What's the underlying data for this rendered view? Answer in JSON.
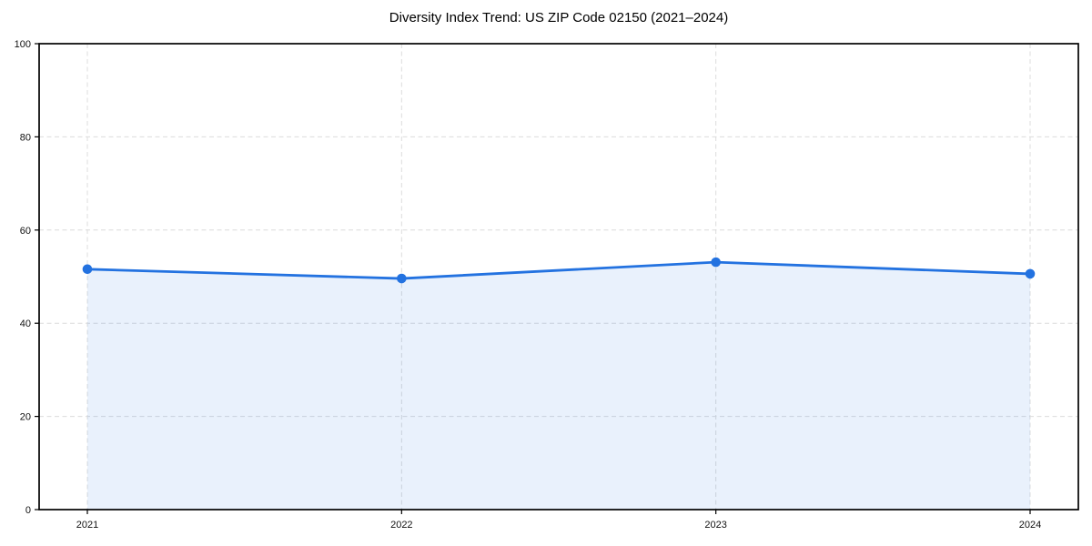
{
  "figure": {
    "background": "#ffffff"
  },
  "chart_data": {
    "type": "area",
    "title": "Diversity Index Trend: US ZIP Code 02150 (2021–2024)",
    "categories": [
      "2021",
      "2022",
      "2023",
      "2024"
    ],
    "series": [
      {
        "name": "Diversity Index",
        "values": [
          51.6,
          49.6,
          53.1,
          50.6
        ]
      }
    ],
    "xlabel": "",
    "ylabel": "",
    "ylim": [
      0,
      100
    ],
    "yticks": [
      0,
      20,
      40,
      60,
      80,
      100
    ],
    "grid": true,
    "grid_style": "dashed",
    "legend_position": "none",
    "marker": "circle",
    "colors": {
      "line": "#2372e0",
      "marker": "#2372e0",
      "fill": "rgba(35,114,224,0.10)",
      "grid": "#dcdcdc",
      "spine": "#000000",
      "tick_text": "#111111",
      "title_text": "#000000"
    }
  }
}
